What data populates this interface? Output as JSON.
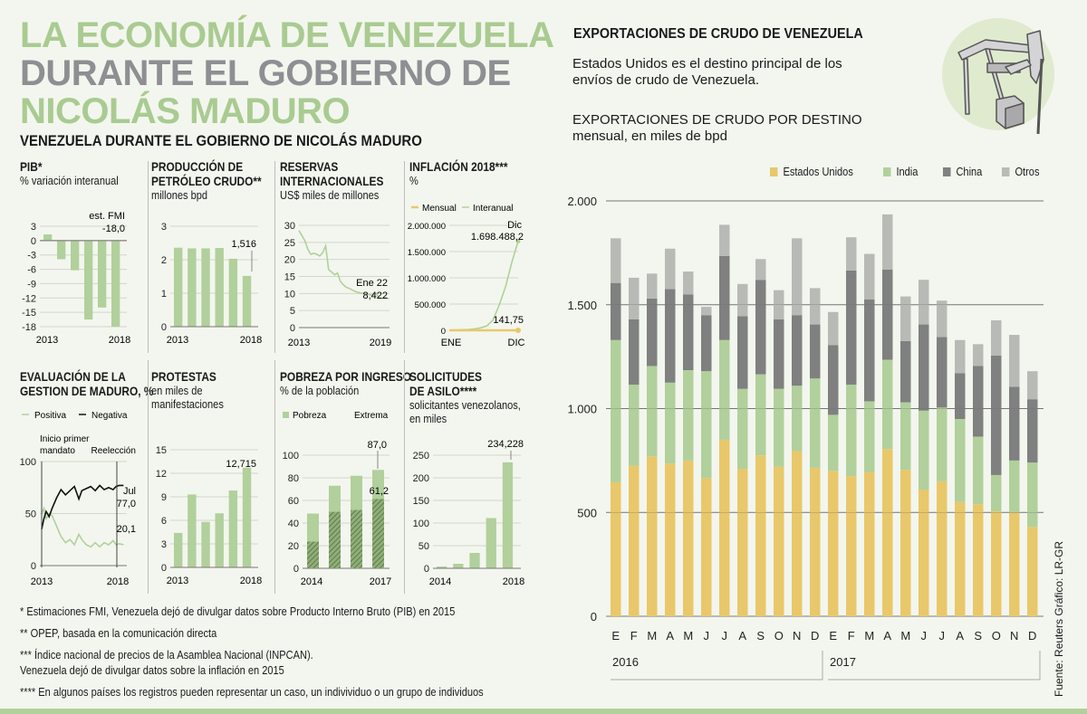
{
  "title": {
    "line1": "LA ECONOMÍA DE VENEZUELA",
    "line2": "DURANTE EL GOBIERNO DE",
    "line3": "NICOLÁS MADURO"
  },
  "subtitle": "VENEZUELA DURANTE EL GOBIERNO DE NICOLÁS MADURO",
  "colors": {
    "green": "#b1d09c",
    "green_title": "#a9cb91",
    "grey_title": "#8e8e93",
    "yellow": "#e8c86a",
    "china": "#7f807f",
    "otros": "#b8bab5",
    "background": "#f3f6ee"
  },
  "panels": {
    "pib": {
      "title": "PIB*",
      "subtitle": "% variación interanual"
    },
    "produccion": {
      "title1": "PRODUCCIÓN DE",
      "title2": "PETRÓLEO CRUDO**",
      "subtitle": "millones bpd"
    },
    "reservas": {
      "title1": "RESERVAS",
      "title2": "INTERNACIONALES",
      "subtitle": "US$ miles de millones"
    },
    "inflacion": {
      "title": "INFLACIÓN 2018***",
      "subtitle": "%"
    },
    "evaluacion": {
      "title1": "EVALUACIÓN DE LA",
      "title2": "GESTION DE MADURO, %"
    },
    "protestas": {
      "title": "PROTESTAS",
      "sub1": "en miles de",
      "sub2": "manifestaciones"
    },
    "pobreza": {
      "title": "POBREZA POR INGRESO",
      "subtitle": "% de la población"
    },
    "asilo": {
      "title1": "SOLICITUDES",
      "title2": "DE ASILO****",
      "sub1": "solicitantes venezolanos,",
      "sub2": "en miles"
    }
  },
  "footnotes": [
    "* Estimaciones FMI, Venezuela dejó de divulgar datos sobre Producto Interno Bruto (PIB) en 2015",
    "** OPEP, basada en la comunicación directa",
    "*** Índice nacional de precios de la Asamblea Nacional (INPCAN).",
    "Venezuela dejó de divulgar datos sobre la inflación en 2015",
    "**** En algunos países  los registros pueden representar un caso, un indivividuo o un grupo de individuos"
  ],
  "right": {
    "title": "EXPORTACIONES DE CRUDO DE VENEZUELA",
    "description": "Estados Unidos es el destino principal de los envíos de crudo de Venezuela.",
    "chart_title": "EXPORTACIONES DE CRUDO POR DESTINO",
    "chart_subtitle": "mensual, en miles de bpd",
    "icon": "oil-pump-jack-icon"
  },
  "source": "Fuente: Reuters    Gráfico: LR-GR",
  "chart_data": [
    {
      "id": "pib",
      "type": "bar",
      "title": "PIB*",
      "ylabel": "% variación interanual",
      "categories": [
        "2013",
        "2014",
        "2015",
        "2016",
        "2017",
        "2018"
      ],
      "values": [
        1.3,
        -3.9,
        -6.2,
        -16.5,
        -14.0,
        -18.0
      ],
      "ylim": [
        -18,
        3
      ],
      "yticks": [
        "3",
        "0",
        "-3",
        "-6",
        "-9",
        "-12",
        "-15",
        "-18"
      ],
      "xtick_labels": [
        "2013",
        "2018"
      ],
      "annotation": [
        "est. FMI",
        "-18,0"
      ]
    },
    {
      "id": "produccion",
      "type": "bar",
      "title": "PRODUCCIÓN DE PETRÓLEO CRUDO**",
      "ylabel": "millones bpd",
      "categories": [
        "2013",
        "2014",
        "2015",
        "2016",
        "2017",
        "2018"
      ],
      "values": [
        2.36,
        2.34,
        2.34,
        2.35,
        2.03,
        1.516
      ],
      "ylim": [
        0,
        3
      ],
      "yticks": [
        "0",
        "1",
        "2",
        "3"
      ],
      "xtick_labels": [
        "2013",
        "2018"
      ],
      "annotation": "1,516"
    },
    {
      "id": "reservas",
      "type": "line",
      "title": "RESERVAS INTERNACIONALES",
      "ylabel": "US$ miles de millones",
      "x": [
        2013.0,
        2013.2,
        2013.4,
        2013.6,
        2013.8,
        2014.0,
        2014.2,
        2014.4,
        2014.6,
        2014.8,
        2015.0,
        2015.2,
        2015.4,
        2015.6,
        2015.8,
        2016.0,
        2016.2,
        2016.4,
        2016.6,
        2016.8,
        2017.0,
        2017.2,
        2017.4,
        2017.6,
        2017.8,
        2018.0,
        2018.2,
        2018.4,
        2018.6,
        2018.8,
        2019.06
      ],
      "values": [
        28.5,
        27,
        25.5,
        23,
        21.5,
        21.8,
        21.5,
        21,
        22,
        24,
        17,
        16.3,
        15.5,
        16,
        13.5,
        12.5,
        11.8,
        11.5,
        11.0,
        10.6,
        10.3,
        10.1,
        10.0,
        9.8,
        9.6,
        9.5,
        10.0,
        8.8,
        8.5,
        8.9,
        8.422
      ],
      "ylim": [
        0,
        30
      ],
      "yticks": [
        "0",
        "5",
        "10",
        "15",
        "20",
        "25",
        "30"
      ],
      "xtick_labels": [
        "2013",
        "2019"
      ],
      "annotation": [
        "Ene 22",
        "8,422"
      ]
    },
    {
      "id": "inflacion",
      "type": "line",
      "title": "INFLACIÓN 2018***",
      "ylabel": "%",
      "categories": [
        "ENE",
        "FEB",
        "MAR",
        "ABR",
        "MAY",
        "JUN",
        "JUL",
        "AGO",
        "SEP",
        "OCT",
        "NOV",
        "DIC"
      ],
      "series": [
        {
          "name": "Mensual",
          "values": [
            84,
            80,
            67,
            80,
            110,
            128,
            125,
            223,
            233,
            148,
            144,
            141.75
          ]
        },
        {
          "name": "Interanual",
          "values": [
            4068,
            6147,
            8878,
            13779,
            24571,
            46305,
            82766,
            200005,
            488865,
            833997,
            1299724,
            1698488.2
          ]
        }
      ],
      "ylim": [
        0,
        2000000
      ],
      "yticks": [
        "0",
        "500.000",
        "1.000.000",
        "1.500.000",
        "2.000.000"
      ],
      "xtick_labels": [
        "ENE",
        "DIC"
      ],
      "legend": [
        "Mensual",
        "Interanual"
      ],
      "annotations": [
        "Dic",
        "1.698.488,2",
        "141,75"
      ]
    },
    {
      "id": "evaluacion",
      "type": "line",
      "title": "EVALUACIÓN DE LA GESTION DE MADURO, %",
      "x": [
        2013.0,
        2013.15,
        2013.3,
        2013.5,
        2013.7,
        2014.0,
        2014.3,
        2014.6,
        2014.9,
        2015.2,
        2015.5,
        2015.7,
        2016.0,
        2016.3,
        2016.6,
        2016.9,
        2017.2,
        2017.5,
        2017.8,
        2018.0,
        2018.2,
        2018.5
      ],
      "series": [
        {
          "name": "Positiva",
          "values": [
            50,
            55,
            45,
            50,
            48,
            38,
            28,
            22,
            25,
            20,
            30,
            25,
            20,
            18,
            22,
            18,
            22,
            20,
            24,
            20,
            21,
            20.1
          ]
        },
        {
          "name": "Negativa",
          "values": [
            35,
            45,
            52,
            47,
            55,
            65,
            73,
            68,
            72,
            76,
            64,
            72,
            74,
            76,
            72,
            77,
            73,
            75,
            73,
            76,
            77,
            77.0
          ]
        }
      ],
      "ylim": [
        0,
        100
      ],
      "yticks": [
        "0",
        "50",
        "100"
      ],
      "xtick_labels": [
        "2013",
        "2018"
      ],
      "legend": [
        "Positiva",
        "Negativa"
      ],
      "annotations": [
        "Inicio primer",
        "mandato",
        "Reelección",
        "Jul",
        "77,0",
        "20,1"
      ]
    },
    {
      "id": "protestas",
      "type": "bar",
      "title": "PROTESTAS",
      "ylabel": "en miles de manifestaciones",
      "categories": [
        "2013",
        "2014",
        "2015",
        "2016",
        "2017",
        "2018"
      ],
      "values": [
        4.4,
        9.3,
        5.8,
        6.9,
        9.8,
        12.715
      ],
      "ylim": [
        0,
        15
      ],
      "yticks": [
        "0",
        "3",
        "6",
        "9",
        "12",
        "15"
      ],
      "xtick_labels": [
        "2013",
        "2018"
      ],
      "annotation": "12,715"
    },
    {
      "id": "pobreza",
      "type": "bar",
      "title": "POBREZA POR INGRESO",
      "ylabel": "% de la población",
      "categories": [
        "2014",
        "2015",
        "2016",
        "2017"
      ],
      "series": [
        {
          "name": "Pobreza",
          "values": [
            48.4,
            73.0,
            81.8,
            87.0
          ]
        },
        {
          "name": "Extrema",
          "values": [
            23.6,
            49.9,
            51.5,
            61.2
          ]
        }
      ],
      "ylim": [
        0,
        100
      ],
      "yticks": [
        "0",
        "20",
        "40",
        "60",
        "80",
        "100"
      ],
      "xtick_labels": [
        "2014",
        "2017"
      ],
      "legend": [
        "Pobreza",
        "Extrema"
      ],
      "annotations": [
        "87,0",
        "61,2"
      ]
    },
    {
      "id": "asilo",
      "type": "bar",
      "title": "SOLICITUDES DE ASILO****",
      "ylabel": "solicitantes venezolanos, en miles",
      "categories": [
        "2014",
        "2015",
        "2016",
        "2017",
        "2018"
      ],
      "values": [
        4,
        10,
        34,
        111,
        234.228
      ],
      "ylim": [
        0,
        250
      ],
      "yticks": [
        "0",
        "50",
        "100",
        "150",
        "200",
        "250"
      ],
      "xtick_labels": [
        "2014",
        "2018"
      ],
      "annotation": "234,228"
    },
    {
      "id": "exportaciones",
      "type": "bar",
      "stacked": true,
      "title": "EXPORTACIONES DE CRUDO POR DESTINO",
      "ylabel": "mensual, en miles de bpd",
      "categories": [
        "E",
        "F",
        "M",
        "A",
        "M",
        "J",
        "J",
        "A",
        "S",
        "O",
        "N",
        "D",
        "E",
        "F",
        "M",
        "A",
        "M",
        "J",
        "J",
        "A",
        "S",
        "O",
        "N",
        "D"
      ],
      "year_groups": [
        {
          "label": "2016",
          "count": 12
        },
        {
          "label": "2017",
          "count": 12
        }
      ],
      "series": [
        {
          "name": "Estados Unidos",
          "color": "#e8c86a",
          "values": [
            645,
            725,
            770,
            735,
            750,
            665,
            850,
            710,
            775,
            720,
            795,
            715,
            700,
            675,
            695,
            805,
            705,
            610,
            650,
            550,
            540,
            505,
            500,
            430
          ]
        },
        {
          "name": "India",
          "color": "#b1d09c",
          "values": [
            685,
            390,
            435,
            390,
            435,
            515,
            480,
            385,
            390,
            375,
            315,
            430,
            270,
            440,
            340,
            430,
            325,
            380,
            355,
            400,
            325,
            175,
            250,
            310
          ]
        },
        {
          "name": "China",
          "color": "#7f807f",
          "values": [
            275,
            315,
            325,
            450,
            365,
            270,
            405,
            350,
            455,
            335,
            340,
            260,
            335,
            550,
            490,
            435,
            295,
            415,
            340,
            220,
            340,
            575,
            355,
            305
          ]
        },
        {
          "name": "Otros",
          "color": "#b8bab5",
          "values": [
            215,
            200,
            120,
            195,
            110,
            40,
            150,
            155,
            100,
            140,
            370,
            175,
            160,
            160,
            220,
            265,
            215,
            215,
            175,
            160,
            105,
            170,
            250,
            135
          ]
        }
      ],
      "ylim": [
        0,
        2000
      ],
      "yticks": [
        "0",
        "500",
        "1.000",
        "1.500",
        "2.000"
      ],
      "legend": [
        "Estados Unidos",
        "India",
        "China",
        "Otros"
      ],
      "legend_position": "top-right",
      "grid": true
    }
  ]
}
